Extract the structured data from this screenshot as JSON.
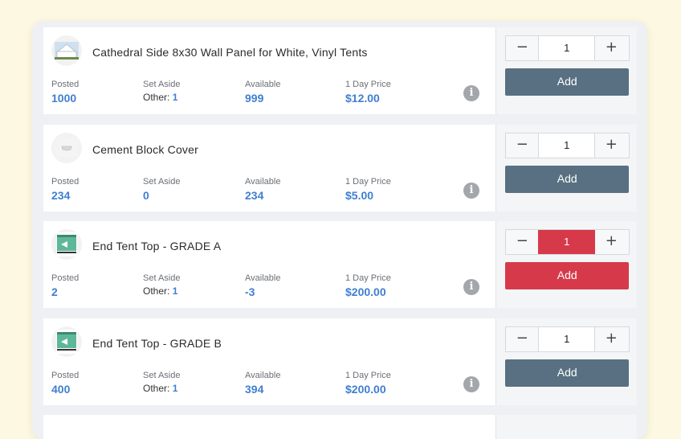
{
  "labels": {
    "posted": "Posted",
    "set_aside": "Set Aside",
    "available": "Available",
    "day_price": "1 Day Price",
    "other_prefix": "Other:",
    "add": "Add",
    "minus": "−",
    "plus": "+",
    "info": "i"
  },
  "colors": {
    "accent_blue": "#3f7fd1",
    "add_button": "#587081",
    "error_red": "#d63a4a"
  },
  "items": [
    {
      "title": "Cathedral Side 8x30 Wall Panel for White, Vinyl Tents",
      "posted": "1000",
      "set_aside_other": "1",
      "available": "999",
      "price": "$12.00",
      "quantity": "1",
      "thumb_icon": "tent-panel-thumbnail"
    },
    {
      "title": "Cement Block Cover",
      "posted": "234",
      "set_aside": "0",
      "available": "234",
      "price": "$5.00",
      "quantity": "1",
      "thumb_icon": "block-cover-thumbnail"
    },
    {
      "title": "End Tent Top - GRADE A",
      "posted": "2",
      "set_aside_other": "1",
      "available": "-3",
      "price": "$200.00",
      "quantity": "1",
      "thumb_icon": "tent-top-thumbnail"
    },
    {
      "title": "End Tent Top - GRADE B",
      "posted": "400",
      "set_aside_other": "1",
      "available": "394",
      "price": "$200.00",
      "quantity": "1",
      "thumb_icon": "tent-top-thumbnail"
    }
  ]
}
